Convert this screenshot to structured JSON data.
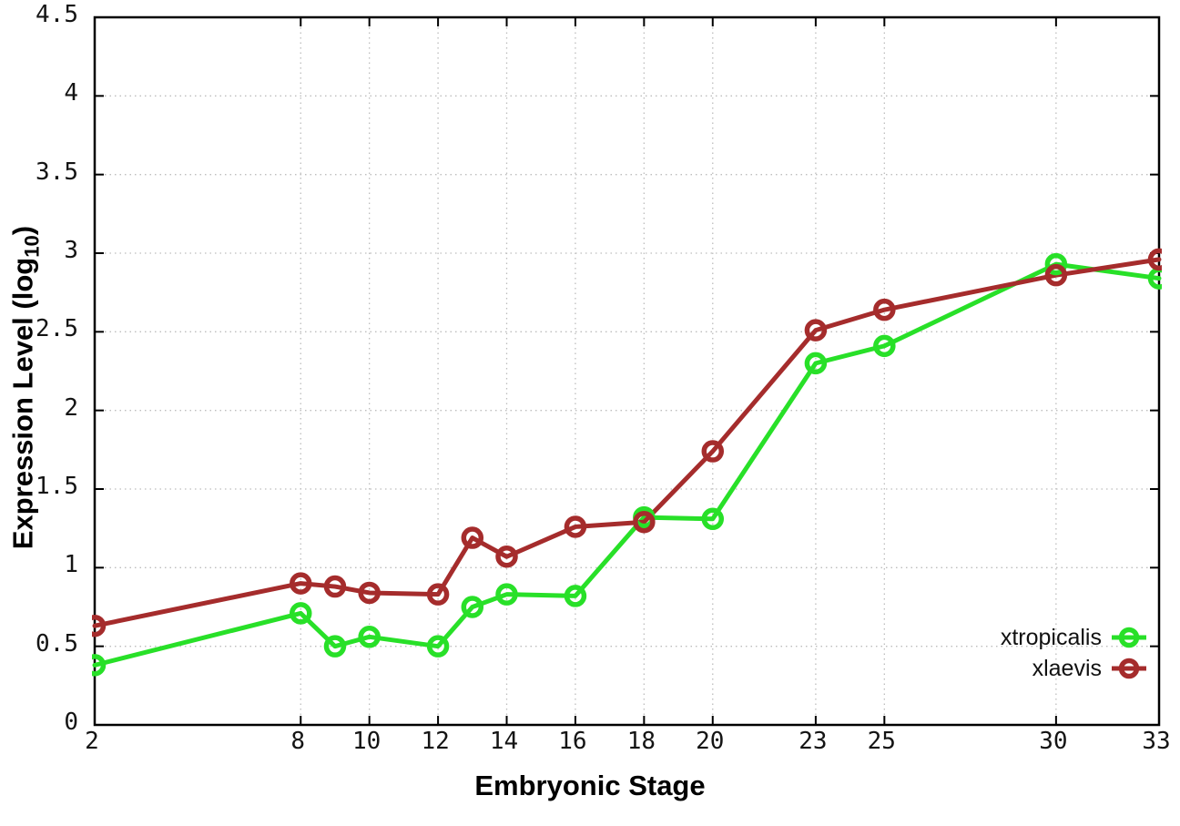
{
  "chart_data": {
    "type": "line",
    "title": "",
    "xlabel": "Embryonic Stage",
    "ylabel_main": "Expression Level (log",
    "ylabel_sub": "10",
    "ylabel_close": ")",
    "x": [
      2,
      8,
      9,
      10,
      12,
      13,
      14,
      16,
      18,
      20,
      23,
      25,
      30,
      33
    ],
    "series": [
      {
        "name": "xtropicalis",
        "color": "#28e028",
        "values": [
          0.38,
          0.71,
          0.5,
          0.56,
          0.5,
          0.75,
          0.83,
          0.82,
          1.32,
          1.31,
          2.3,
          2.41,
          2.93,
          2.84
        ]
      },
      {
        "name": "xlaevis",
        "color": "#a52c2c",
        "values": [
          0.63,
          0.9,
          0.88,
          0.84,
          0.83,
          1.19,
          1.07,
          1.26,
          1.29,
          1.74,
          2.51,
          2.64,
          2.86,
          2.96
        ]
      }
    ],
    "xlim": [
      2,
      33
    ],
    "ylim": [
      0,
      4.5
    ],
    "x_ticks": [
      2,
      8,
      10,
      12,
      14,
      16,
      18,
      20,
      23,
      25,
      30,
      33
    ],
    "y_ticks": [
      0,
      0.5,
      1,
      1.5,
      2,
      2.5,
      3,
      3.5,
      4,
      4.5
    ],
    "y_tick_labels": [
      "0",
      "0.5",
      "1",
      "1.5",
      "2",
      "2.5",
      "3",
      "3.5",
      "4",
      "4.5"
    ],
    "grid": true,
    "legend_position": "bottom-right",
    "colors": {
      "border": "#000000",
      "grid": "#bdbdbd",
      "tick_text": "#141414"
    }
  }
}
